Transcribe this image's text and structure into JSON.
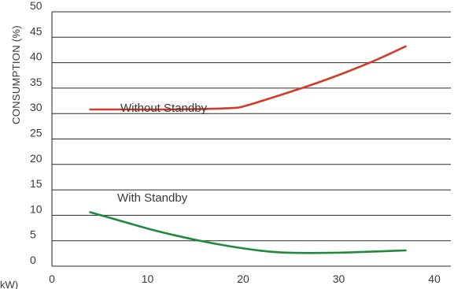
{
  "chart_data": {
    "type": "line",
    "ylabel": "CONSUMPTION (%)",
    "xlabel": "kW)",
    "xlim": [
      0,
      40
    ],
    "ylim": [
      0,
      50
    ],
    "x_ticks": [
      0,
      10,
      20,
      30,
      40
    ],
    "y_ticks": [
      0,
      5,
      10,
      15,
      20,
      25,
      30,
      35,
      40,
      45,
      50
    ],
    "grid": "horizontal",
    "series": [
      {
        "name": "Without Standby",
        "color": "#d13c2a",
        "x": [
          4,
          8,
          12,
          16,
          19,
          20,
          22,
          25,
          28,
          31,
          34,
          37
        ],
        "y": [
          30.8,
          30.8,
          30.8,
          30.9,
          31.1,
          31.4,
          32.5,
          34.3,
          36.2,
          38.3,
          40.6,
          43.2
        ]
      },
      {
        "name": "With Standby",
        "color": "#1f8a3d",
        "x": [
          4,
          7,
          10,
          13,
          16,
          19,
          22,
          24,
          26,
          28,
          31,
          34,
          37
        ],
        "y": [
          10.6,
          9.0,
          7.4,
          6.0,
          4.8,
          3.8,
          3.0,
          2.7,
          2.6,
          2.6,
          2.7,
          2.9,
          3.1
        ]
      }
    ]
  }
}
